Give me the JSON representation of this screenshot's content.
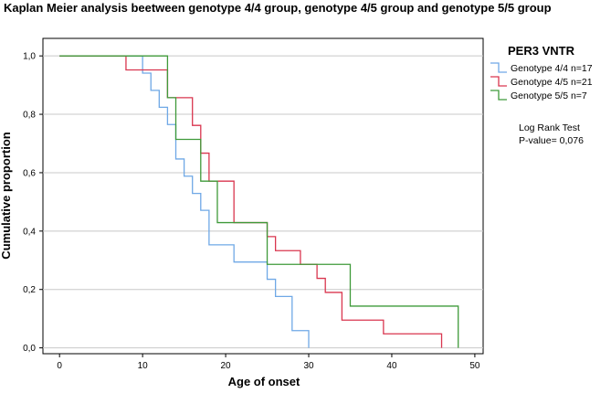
{
  "chart_data": {
    "type": "line",
    "subtype": "kaplan-meier-step",
    "title": "Kaplan Meier analysis beetween genotype 4/4 group, genotype 4/5 group and genotype 5/5 group",
    "xlabel": "Age of onset",
    "ylabel": "Cumulative proportion",
    "xlim": [
      -2,
      51
    ],
    "ylim": [
      -0.02,
      1.06
    ],
    "x_ticks": [
      0,
      10,
      20,
      30,
      40,
      50
    ],
    "x_tick_labels": [
      "0",
      "10",
      "20",
      "30",
      "40",
      "50"
    ],
    "y_ticks": [
      0,
      0.2,
      0.4,
      0.6,
      0.8,
      1.0
    ],
    "y_tick_labels": [
      "0,0",
      "0,2",
      "0,4",
      "0,6",
      "0,8",
      "1,0"
    ],
    "grid": "horizontal",
    "legend": {
      "title": "PER3 VNTR",
      "placement": "right"
    },
    "annotation": {
      "line1": "Log Rank Test",
      "line2": "P-value= 0,076"
    },
    "series": [
      {
        "name": "Genotype 4/4 n=17",
        "color": "#6fa8e6",
        "x": [
          0,
          10,
          11,
          12,
          13,
          14,
          15,
          16,
          17,
          18,
          21,
          25,
          26,
          28,
          30
        ],
        "y": [
          1.0,
          0.941,
          0.882,
          0.824,
          0.765,
          0.647,
          0.588,
          0.529,
          0.471,
          0.353,
          0.294,
          0.235,
          0.176,
          0.059,
          0.0
        ]
      },
      {
        "name": "Genotype 4/5 n=21",
        "color": "#d9364f",
        "x": [
          0,
          8,
          13,
          16,
          17,
          18,
          21,
          25,
          26,
          29,
          31,
          32,
          34,
          39,
          46
        ],
        "y": [
          1.0,
          0.952,
          0.857,
          0.762,
          0.667,
          0.571,
          0.429,
          0.381,
          0.333,
          0.286,
          0.238,
          0.19,
          0.095,
          0.048,
          0.0
        ]
      },
      {
        "name": "Genotype 5/5 n=7",
        "color": "#3f9a3a",
        "x": [
          0,
          13,
          14,
          17,
          19,
          25,
          35,
          48
        ],
        "y": [
          1.0,
          0.857,
          0.714,
          0.571,
          0.429,
          0.286,
          0.143,
          0.0
        ]
      }
    ]
  }
}
